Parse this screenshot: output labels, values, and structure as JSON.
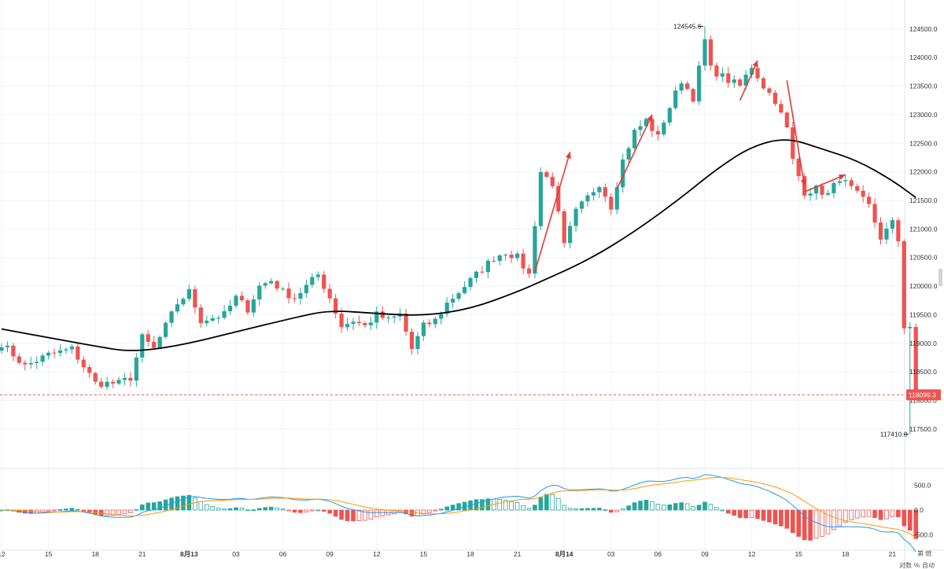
{
  "chart_data": {
    "type": "candlestick",
    "colors": {
      "up": "#26a69a",
      "down": "#ef5350",
      "ma": "#000000",
      "arrow": "#e53935",
      "dif": "#2196f3",
      "dea": "#ff9800",
      "grid": "#f0f3fa"
    },
    "price_axis": {
      "range": [
        117100,
        124800
      ],
      "ticks": [
        "124500.0",
        "124000.0",
        "123500.0",
        "123000.0",
        "122500.0",
        "122000.0",
        "121500.0",
        "121000.0",
        "120500.0",
        "120000.0",
        "119500.0",
        "119000.0",
        "118500.0",
        "118000.0",
        "117500.0"
      ]
    },
    "macd_axis": {
      "range": [
        -650,
        650
      ],
      "ticks": [
        "500.0",
        "0.0",
        "-500.0"
      ]
    },
    "x_ticks": [
      {
        "label": "12",
        "i": 0
      },
      {
        "label": "15",
        "i": 8
      },
      {
        "label": "18",
        "i": 16
      },
      {
        "label": "21",
        "i": 24
      },
      {
        "label": "8月13",
        "i": 32,
        "bold": true
      },
      {
        "label": "03",
        "i": 40
      },
      {
        "label": "06",
        "i": 48
      },
      {
        "label": "09",
        "i": 56
      },
      {
        "label": "12",
        "i": 64
      },
      {
        "label": "15",
        "i": 72
      },
      {
        "label": "18",
        "i": 80
      },
      {
        "label": "21",
        "i": 88
      },
      {
        "label": "8月14",
        "i": 96,
        "bold": true
      },
      {
        "label": "03",
        "i": 104
      },
      {
        "label": "06",
        "i": 112
      },
      {
        "label": "09",
        "i": 120
      },
      {
        "label": "12",
        "i": 128
      },
      {
        "label": "15",
        "i": 136
      },
      {
        "label": "18",
        "i": 144
      },
      {
        "label": "21",
        "i": 152
      }
    ],
    "high_label": "124545.6",
    "low_label": "117410.0",
    "last_price": "118099.3",
    "last_price_value": 118099.3,
    "corner_labels": [
      "对数",
      "%",
      "自动"
    ],
    "top_right_label": "第 燃",
    "ma_points": [
      [
        0,
        119250
      ],
      [
        8,
        119100
      ],
      [
        16,
        118950
      ],
      [
        22,
        118850
      ],
      [
        30,
        118950
      ],
      [
        40,
        119200
      ],
      [
        50,
        119450
      ],
      [
        56,
        119580
      ],
      [
        64,
        119520
      ],
      [
        72,
        119480
      ],
      [
        80,
        119600
      ],
      [
        88,
        119900
      ],
      [
        92,
        120080
      ],
      [
        100,
        120450
      ],
      [
        108,
        120950
      ],
      [
        116,
        121550
      ],
      [
        122,
        122050
      ],
      [
        128,
        122450
      ],
      [
        134,
        122600
      ],
      [
        140,
        122400
      ],
      [
        146,
        122200
      ],
      [
        152,
        121850
      ],
      [
        156,
        121550
      ]
    ],
    "arrows": [
      [
        [
          91,
          120250
        ],
        [
          97,
          122350
        ]
      ],
      [
        [
          105,
          121700
        ],
        [
          111,
          123000
        ]
      ],
      [
        [
          126,
          123250
        ],
        [
          129,
          123950
        ]
      ],
      [
        [
          134,
          123600
        ],
        [
          137,
          121750
        ]
      ],
      [
        [
          137,
          121650
        ],
        [
          144,
          121950
        ]
      ]
    ],
    "waypoints": [
      [
        0,
        119000
      ],
      [
        4,
        118600
      ],
      [
        8,
        118800
      ],
      [
        12,
        118900
      ],
      [
        16,
        118300
      ],
      [
        20,
        118300
      ],
      [
        22,
        118400
      ],
      [
        24,
        119100
      ],
      [
        26,
        118900
      ],
      [
        30,
        119700
      ],
      [
        32,
        119900
      ],
      [
        34,
        119400
      ],
      [
        38,
        119500
      ],
      [
        40,
        119800
      ],
      [
        42,
        119600
      ],
      [
        44,
        120000
      ],
      [
        46,
        120100
      ],
      [
        48,
        119900
      ],
      [
        50,
        119800
      ],
      [
        52,
        120000
      ],
      [
        54,
        120200
      ],
      [
        56,
        119800
      ],
      [
        58,
        119300
      ],
      [
        60,
        119400
      ],
      [
        62,
        119300
      ],
      [
        64,
        119500
      ],
      [
        66,
        119400
      ],
      [
        68,
        119500
      ],
      [
        70,
        118900
      ],
      [
        72,
        119300
      ],
      [
        74,
        119400
      ],
      [
        76,
        119700
      ],
      [
        80,
        120100
      ],
      [
        84,
        120500
      ],
      [
        86,
        120600
      ],
      [
        88,
        120500
      ],
      [
        90,
        120200
      ],
      [
        91,
        121100
      ],
      [
        92,
        122000
      ],
      [
        94,
        121800
      ],
      [
        96,
        120700
      ],
      [
        98,
        121300
      ],
      [
        102,
        121800
      ],
      [
        104,
        121400
      ],
      [
        106,
        122200
      ],
      [
        108,
        122700
      ],
      [
        110,
        122900
      ],
      [
        112,
        122600
      ],
      [
        113,
        122900
      ],
      [
        116,
        123600
      ],
      [
        118,
        123300
      ],
      [
        120,
        124300
      ],
      [
        121,
        123800
      ],
      [
        124,
        123600
      ],
      [
        126,
        123500
      ],
      [
        128,
        123850
      ],
      [
        130,
        123500
      ],
      [
        132,
        123250
      ],
      [
        134,
        122750
      ],
      [
        135,
        122200
      ],
      [
        137,
        121650
      ],
      [
        139,
        121700
      ],
      [
        141,
        121600
      ],
      [
        143,
        121900
      ],
      [
        145,
        121700
      ],
      [
        148,
        121400
      ],
      [
        150,
        120850
      ],
      [
        152,
        121100
      ],
      [
        153,
        120800
      ],
      [
        154,
        119300
      ],
      [
        155,
        119300
      ],
      [
        156,
        118100
      ]
    ]
  }
}
